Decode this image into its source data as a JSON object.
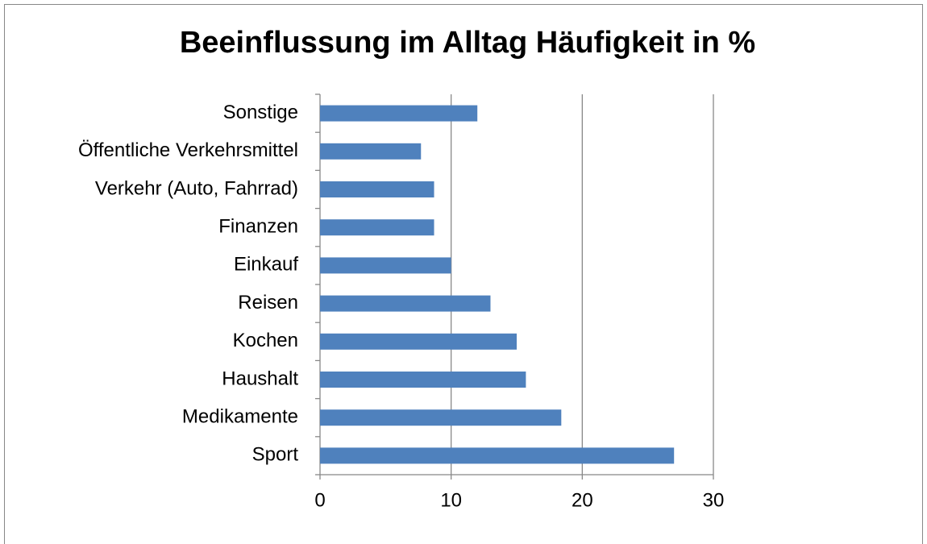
{
  "chart_data": {
    "type": "barh",
    "title": "Beeinflussung im Alltag Häufigkeit in %",
    "categories": [
      "Sonstige",
      "Öffentliche Verkehrsmittel",
      "Verkehr (Auto, Fahrrad)",
      "Finanzen",
      "Einkauf",
      "Reisen",
      "Kochen",
      "Haushalt",
      "Medikamente",
      "Sport"
    ],
    "values": [
      12,
      7.7,
      8.7,
      8.7,
      10,
      13,
      15,
      15.7,
      18.4,
      27
    ],
    "color": "#4f81bd",
    "xlim": [
      0,
      30
    ],
    "xticks": [
      0,
      10,
      20,
      30
    ],
    "grid": true
  }
}
